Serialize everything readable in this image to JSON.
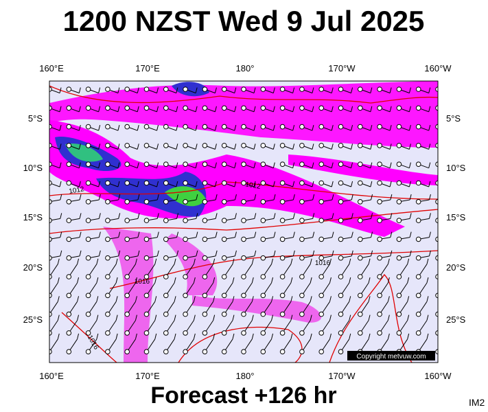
{
  "header": {
    "title": "1200 NZST Wed 9 Jul 2025"
  },
  "map": {
    "longitude_labels": [
      "160°E",
      "170°E",
      "180°",
      "170°W",
      "160°W"
    ],
    "latitude_labels": [
      "5°S",
      "10°S",
      "15°S",
      "20°S",
      "25°S"
    ],
    "isobar_labels": [
      "1012",
      "1012",
      "1016",
      "1016",
      "1016"
    ],
    "copyright": "Copyright metvuw.com"
  },
  "footer": {
    "forecast": "Forecast +126 hr",
    "image_id": "IM2"
  }
}
